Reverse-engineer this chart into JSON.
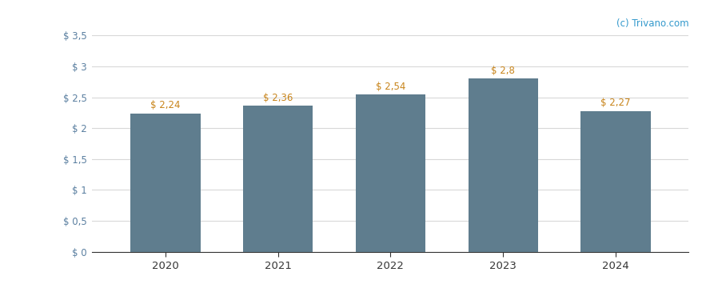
{
  "categories": [
    "2020",
    "2021",
    "2022",
    "2023",
    "2024"
  ],
  "values": [
    2.24,
    2.36,
    2.54,
    2.8,
    2.27
  ],
  "labels": [
    "$ 2,24",
    "$ 2,36",
    "$ 2,54",
    "$ 2,8",
    "$ 2,27"
  ],
  "bar_color": "#5f7d8e",
  "background_color": "#ffffff",
  "ylim": [
    0,
    3.5
  ],
  "yticks": [
    0,
    0.5,
    1.0,
    1.5,
    2.0,
    2.5,
    3.0,
    3.5
  ],
  "ytick_labels": [
    "$ 0",
    "$ 0,5",
    "$ 1",
    "$ 1,5",
    "$ 2",
    "$ 2,5",
    "$ 3",
    "$ 3,5"
  ],
  "grid_color": "#d8d8d8",
  "label_color": "#c8841a",
  "ytick_color": "#5a7fa0",
  "xtick_color": "#333333",
  "watermark": "(c) Trivano.com",
  "watermark_color": "#3399cc",
  "bar_width": 0.62,
  "figsize": [
    8.88,
    3.7
  ],
  "dpi": 100
}
